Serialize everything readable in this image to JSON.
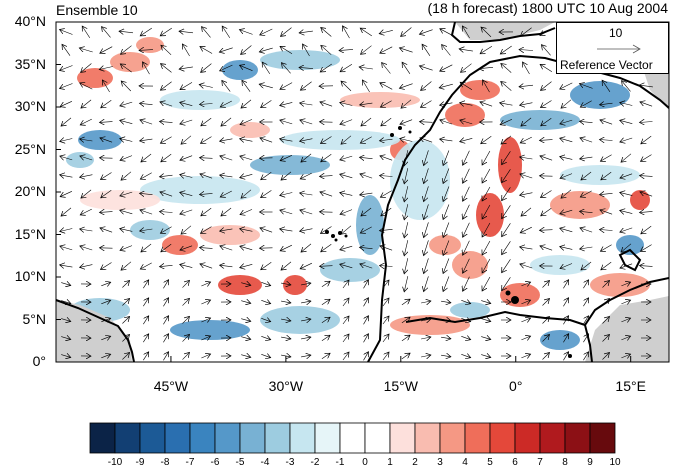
{
  "title_left": "Ensemble 10",
  "title_right": "(18 h forecast) 1800 UTC 10 Aug 2004",
  "reference_vector": {
    "magnitude": "10",
    "label": "Reference Vector"
  },
  "map": {
    "lon_range": [
      -60,
      20
    ],
    "lat_range": [
      0,
      40
    ],
    "lat_ticks": [
      "40°N",
      "35°N",
      "30°N",
      "25°N",
      "20°N",
      "15°N",
      "10°N",
      "5°N",
      "0°"
    ],
    "lon_ticks": [
      "45°W",
      "30°W",
      "15°W",
      "0°",
      "15°E"
    ],
    "lon_tick_values": [
      -45,
      -30,
      -15,
      0,
      15
    ],
    "lat_tick_values": [
      40,
      35,
      30,
      25,
      20,
      15,
      10,
      5,
      0
    ]
  },
  "colorbar": {
    "labels": [
      "-10",
      "-9",
      "-8",
      "-7",
      "-6",
      "-5",
      "-4",
      "-3",
      "-2",
      "-1",
      "0",
      "1",
      "2",
      "3",
      "4",
      "5",
      "6",
      "7",
      "8",
      "9",
      "10"
    ],
    "colors": [
      "#0b2347",
      "#123f73",
      "#1c5a96",
      "#2a6fb0",
      "#3a84bf",
      "#5598c9",
      "#78b1d3",
      "#9dcce0",
      "#c6e6f0",
      "#e6f5f8",
      "#ffffff",
      "#ffffff",
      "#fde0dc",
      "#f9bcb0",
      "#f59884",
      "#ef6e5a",
      "#e4483a",
      "#cc2a26",
      "#b01a1e",
      "#8c1015",
      "#670a0d"
    ]
  }
}
